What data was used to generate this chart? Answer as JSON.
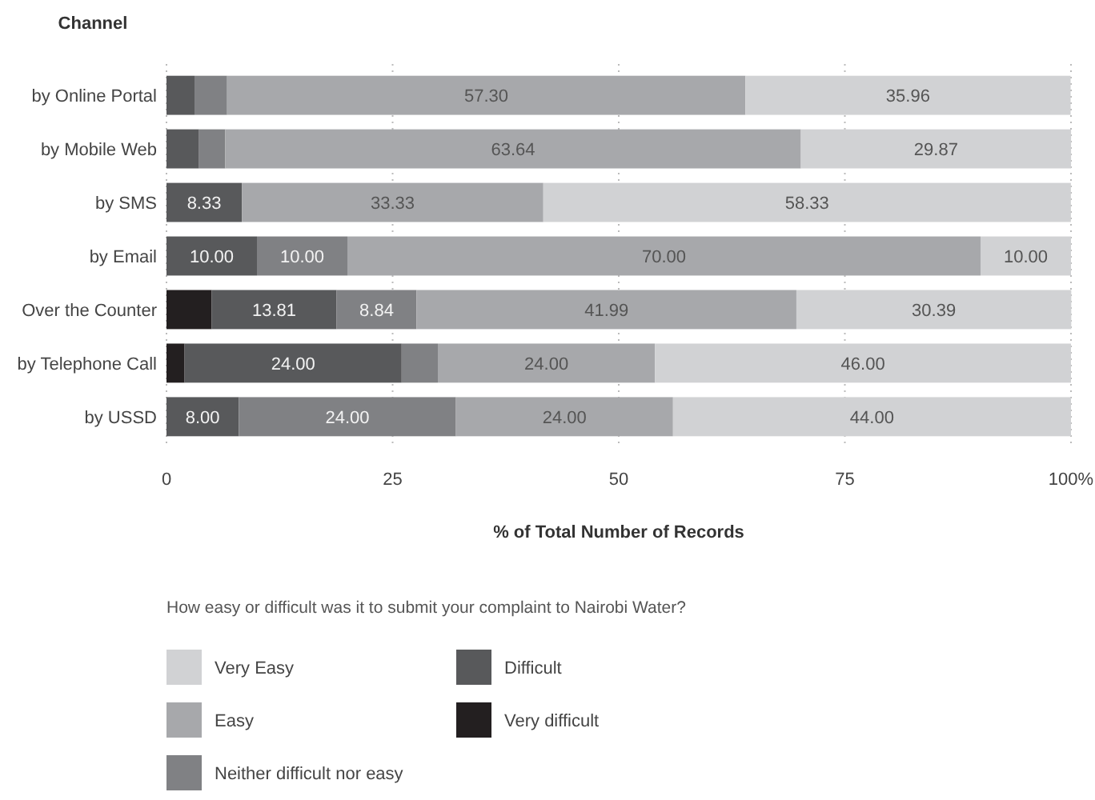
{
  "chart_data": {
    "type": "bar",
    "orientation": "horizontal",
    "stacked": true,
    "ylabel": "Channel",
    "xlabel": "% of Total Number of Records",
    "legend_title": "How easy or difficult was it to submit your complaint to Nairobi Water?",
    "legend": "bottom",
    "grid": "x",
    "categories": [
      "by Online Portal",
      "by Mobile Web",
      "by SMS",
      "by Email",
      "Over the Counter",
      "by Telephone Call",
      "by USSD"
    ],
    "xlim": [
      0,
      100
    ],
    "xticks": [
      0,
      25,
      50,
      75,
      {
        "value": 100,
        "label": "100%"
      }
    ],
    "series": [
      {
        "name": "Very difficult",
        "color": "#231f20",
        "values": [
          null,
          null,
          null,
          null,
          5,
          2,
          null
        ],
        "value_labels": [
          null,
          null,
          null,
          null,
          null,
          null,
          null
        ]
      },
      {
        "name": "Difficult",
        "color": "#58595b",
        "values": [
          3.1,
          3.6,
          8.33,
          10,
          13.81,
          24,
          8
        ],
        "value_labels": [
          null,
          null,
          "8.33",
          "10.00",
          "13.81",
          "24.00",
          "8.00"
        ]
      },
      {
        "name": "Neither difficult nor easy",
        "color": "#808184",
        "values": [
          3.6,
          2.9,
          null,
          10,
          8.84,
          4,
          24
        ],
        "value_labels": [
          null,
          null,
          null,
          "10.00",
          "8.84",
          null,
          "24.00"
        ]
      },
      {
        "name": "Easy",
        "color": "#a7a8ab",
        "values": [
          57.3,
          63.64,
          33.33,
          70,
          41.99,
          24,
          24
        ],
        "value_labels": [
          "57.30",
          "63.64",
          "33.33",
          "70.00",
          "41.99",
          "24.00",
          "24.00"
        ]
      },
      {
        "name": "Very Easy",
        "color": "#d1d2d4",
        "values": [
          35.96,
          29.87,
          58.33,
          10,
          30.39,
          46,
          44
        ],
        "value_labels": [
          "35.96",
          "29.87",
          "58.33",
          "10.00",
          "30.39",
          "46.00",
          "44.00"
        ]
      }
    ]
  }
}
